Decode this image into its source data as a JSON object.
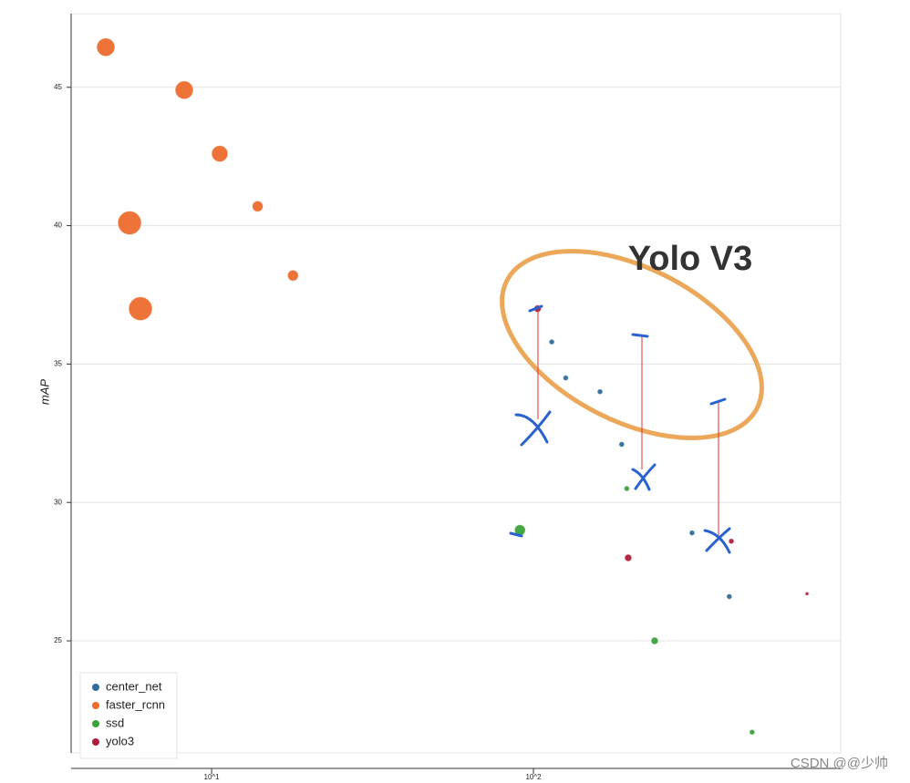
{
  "chart_data": {
    "type": "scatter",
    "y_label": "mAP",
    "xscale": "log",
    "xlim": [
      3.66,
      901
    ],
    "ylim": [
      20.95,
      47.66
    ],
    "xticks": [
      {
        "value": 10,
        "label": "10^1"
      },
      {
        "value": 100,
        "label": "10^2"
      }
    ],
    "yticks": [
      25,
      30,
      35,
      40,
      45
    ],
    "grid": true,
    "legend": "lower left",
    "annotation": "Yolo V3",
    "watermark": "CSDN @@少帅",
    "series": [
      {
        "name": "center_net",
        "color": "#2f6e9c",
        "x": [
          114,
          126,
          161,
          188,
          311,
          406
        ],
        "values": [
          35.8,
          34.5,
          34.0,
          32.1,
          28.9,
          26.6
        ],
        "sizes": [
          3,
          3,
          3,
          3,
          3,
          3
        ]
      },
      {
        "name": "faster_rcnn",
        "color": "#ec6b2d",
        "x": [
          4.69,
          8.22,
          10.6,
          13.9,
          17.9,
          5.56,
          6.01
        ],
        "values": [
          46.45,
          44.9,
          42.6,
          40.7,
          38.2,
          40.1,
          37.0
        ],
        "sizes": [
          10,
          10,
          9,
          6,
          6,
          13,
          13
        ]
      },
      {
        "name": "ssd",
        "color": "#3ba23a",
        "x": [
          90.8,
          195,
          238,
          478
        ],
        "values": [
          29.0,
          30.5,
          25.0,
          21.7
        ],
        "sizes": [
          6,
          3,
          4,
          3
        ]
      },
      {
        "name": "yolo3",
        "color": "#b01e3a",
        "x": [
          103,
          197,
          412,
          708
        ],
        "values": [
          37.0,
          28.0,
          28.6,
          26.7
        ],
        "sizes": [
          4,
          4,
          3,
          2
        ]
      }
    ]
  }
}
